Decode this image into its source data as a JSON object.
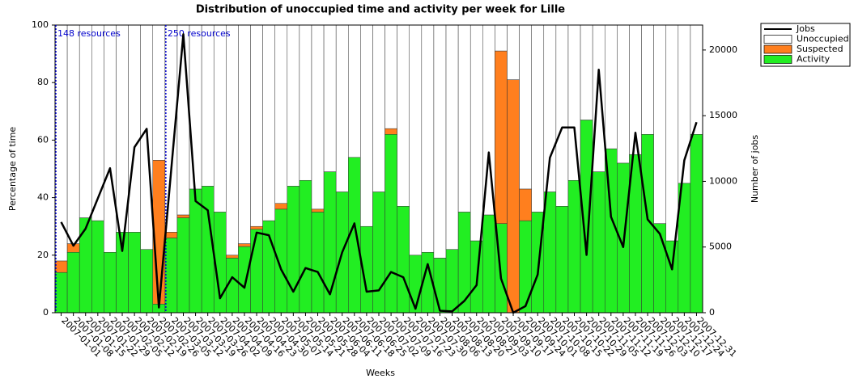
{
  "chart_data": {
    "type": "stacked-bar-line",
    "title": "Distribution of unoccupied time and activity per week for Lille",
    "x_label": "Weeks",
    "y_label": "Percentage of time",
    "y2_label": "Number of jobs",
    "categories": [
      "2007-01-01",
      "2007-01-08",
      "2007-01-15",
      "2007-01-22",
      "2007-01-29",
      "2007-02-05",
      "2007-02-12",
      "2007-02-19",
      "2007-02-26",
      "2007-03-05",
      "2007-03-12",
      "2007-03-19",
      "2007-03-26",
      "2007-04-02",
      "2007-04-09",
      "2007-04-16",
      "2007-04-23",
      "2007-04-30",
      "2007-05-07",
      "2007-05-14",
      "2007-05-21",
      "2007-05-28",
      "2007-06-04",
      "2007-06-11",
      "2007-06-18",
      "2007-06-25",
      "2007-07-02",
      "2007-07-09",
      "2007-07-16",
      "2007-07-23",
      "2007-07-30",
      "2007-08-06",
      "2007-08-13",
      "2007-08-20",
      "2007-08-27",
      "2007-09-03",
      "2007-09-10",
      "2007-09-17",
      "2007-09-24",
      "2007-10-01",
      "2007-10-08",
      "2007-10-15",
      "2007-10-22",
      "2007-10-29",
      "2007-11-05",
      "2007-11-12",
      "2007-11-19",
      "2007-11-26",
      "2007-12-03",
      "2007-12-10",
      "2007-12-17",
      "2007-12-24",
      "2007-12-31"
    ],
    "series": [
      {
        "name": "Jobs",
        "color": "#000000",
        "axis": "y2",
        "values": [
          6900,
          5100,
          6400,
          8700,
          11000,
          4700,
          12600,
          14000,
          400,
          10800,
          21200,
          8500,
          7800,
          1100,
          2700,
          1900,
          6100,
          5900,
          3300,
          1600,
          3400,
          3100,
          1400,
          4600,
          6800,
          1600,
          1700,
          3100,
          2700,
          300,
          3700,
          150,
          100,
          900,
          2100,
          12200,
          2600,
          0,
          500,
          2900,
          11800,
          14100,
          14100,
          4400,
          18500,
          7300,
          5000,
          13700,
          7100,
          6000,
          3300,
          11600,
          14500
        ]
      },
      {
        "name": "Unoccupied",
        "color": "#ffffff",
        "values": [
          82,
          76,
          67,
          68,
          79,
          72,
          72,
          78,
          47,
          72,
          66,
          57,
          56,
          65,
          80,
          76,
          70,
          68,
          62,
          56,
          54,
          64,
          51,
          58,
          46,
          70,
          58,
          36,
          63,
          80,
          79,
          81,
          78,
          65,
          75,
          66,
          9,
          19,
          57,
          65,
          58,
          63,
          54,
          33,
          51,
          43,
          48,
          45,
          38,
          69,
          75,
          55,
          38
        ]
      },
      {
        "name": "Suspected",
        "color": "#ff7f1e",
        "values": [
          4,
          3,
          0,
          0,
          0,
          0,
          0,
          0,
          50,
          2,
          1,
          0,
          0,
          0,
          1,
          1,
          1,
          0,
          2,
          0,
          0,
          1,
          0,
          0,
          0,
          0,
          0,
          2,
          0,
          0,
          0,
          0,
          0,
          0,
          0,
          0,
          60,
          81,
          11,
          0,
          0,
          0,
          0,
          0,
          0,
          0,
          0,
          0,
          0,
          0,
          0,
          0,
          0
        ]
      },
      {
        "name": "Activity",
        "color": "#22ee22",
        "values": [
          14,
          21,
          33,
          32,
          21,
          28,
          28,
          22,
          3,
          26,
          33,
          43,
          44,
          35,
          19,
          23,
          29,
          32,
          36,
          44,
          46,
          35,
          49,
          42,
          54,
          30,
          42,
          62,
          37,
          20,
          21,
          19,
          22,
          35,
          25,
          34,
          31,
          0,
          32,
          35,
          42,
          37,
          46,
          67,
          49,
          57,
          52,
          55,
          62,
          31,
          25,
          45,
          62
        ]
      }
    ],
    "annotations": [
      {
        "text": "148 resources",
        "at": "2007-01-01"
      },
      {
        "text": "250 resources",
        "at": "2007-03-05"
      }
    ],
    "ylim": [
      0,
      100
    ],
    "yticks": [
      0,
      20,
      40,
      60,
      80,
      100
    ],
    "y2lim": [
      0,
      21900
    ],
    "y2ticks": [
      0,
      5000,
      10000,
      15000,
      20000
    ]
  }
}
